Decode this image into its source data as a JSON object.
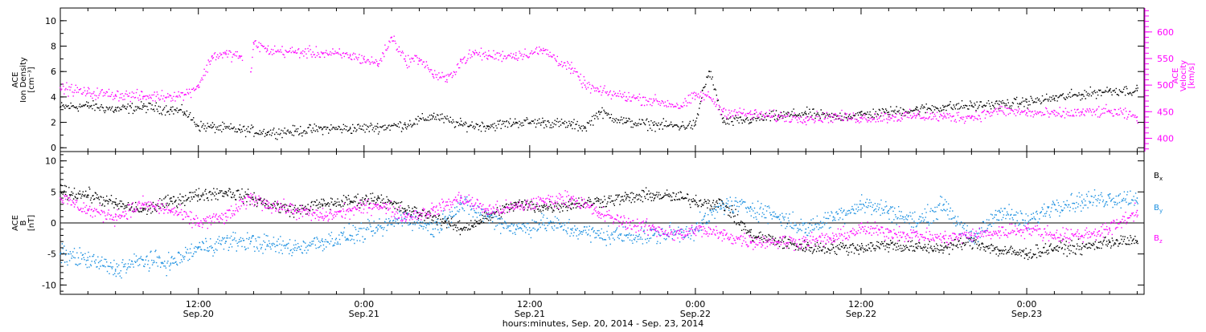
{
  "figure": {
    "x_title": "hours:minutes, Sep. 20, 2014 - Sep. 23, 2014",
    "x_ticks": [
      {
        "hours": 12,
        "time": "12:00",
        "date": "Sep.20"
      },
      {
        "hours": 24,
        "time": "0:00",
        "date": "Sep.21"
      },
      {
        "hours": 36,
        "time": "12:00",
        "date": "Sep.21"
      },
      {
        "hours": 48,
        "time": "0:00",
        "date": "Sep.22"
      },
      {
        "hours": 60,
        "time": "12:00",
        "date": "Sep.22"
      },
      {
        "hours": 72,
        "time": "0:00",
        "date": "Sep.23"
      }
    ],
    "x_range_hours": [
      2,
      80.5
    ],
    "x_hours_note_unit": "hours from 2014-09-20 00:00"
  },
  "colors": {
    "black": "#000000",
    "magenta": "#ff00ff",
    "blue": "#1a8fe0"
  },
  "chart_data": [
    {
      "type": "scatter",
      "panel": "top",
      "left_axis": {
        "label_lines": [
          "ACE",
          "Ion Density",
          "[cm⁻³]"
        ],
        "ylim": [
          -0.3,
          11
        ],
        "ticks": [
          0,
          2,
          4,
          6,
          8,
          10
        ]
      },
      "right_axis": {
        "label_lines": [
          "ACE",
          "Velocity",
          "[km/s]"
        ],
        "ylim": [
          375,
          645
        ],
        "ticks": [
          400,
          450,
          500,
          550,
          600
        ],
        "color": "#ff00ff"
      },
      "series": [
        {
          "name": "Ion Density",
          "axis": "left",
          "color": "#000000",
          "x": [
            2,
            4,
            6,
            8,
            10,
            11,
            12,
            13,
            15,
            17,
            19,
            21,
            23,
            25,
            27,
            29,
            31,
            33,
            35,
            37,
            39,
            40,
            41,
            43,
            45,
            47,
            48,
            48.5,
            49,
            50,
            52,
            54,
            56,
            58,
            60,
            62,
            64,
            66,
            68,
            70,
            72,
            74,
            76,
            78,
            80
          ],
          "y": [
            3.2,
            3.3,
            3.0,
            3.2,
            3.0,
            2.8,
            1.7,
            1.6,
            1.4,
            1.2,
            1.3,
            1.5,
            1.5,
            1.6,
            1.8,
            2.5,
            1.8,
            1.7,
            2.0,
            2.0,
            1.8,
            1.6,
            2.8,
            2.0,
            1.8,
            1.7,
            1.8,
            4.5,
            6.0,
            2.0,
            2.2,
            2.5,
            2.7,
            2.4,
            2.6,
            2.8,
            3.0,
            3.2,
            3.3,
            3.4,
            3.6,
            3.9,
            4.2,
            4.5,
            4.5
          ]
        },
        {
          "name": "Velocity",
          "axis": "right",
          "color": "#ff00ff",
          "x": [
            2,
            4,
            6,
            8,
            10,
            11,
            12,
            13,
            14,
            15,
            15.8,
            16,
            17,
            19,
            21,
            23,
            24,
            25,
            26,
            27,
            28,
            29,
            30,
            31,
            32,
            33,
            35,
            37,
            39,
            40,
            41,
            43,
            45,
            47,
            48,
            49,
            50,
            52,
            54,
            56,
            58,
            60,
            62,
            64,
            66,
            68,
            70,
            72,
            74,
            76,
            78,
            80
          ],
          "y": [
            495,
            485,
            482,
            478,
            480,
            482,
            500,
            555,
            558,
            555,
            525,
            580,
            565,
            562,
            560,
            555,
            548,
            540,
            590,
            545,
            550,
            520,
            510,
            545,
            560,
            555,
            556,
            565,
            530,
            500,
            488,
            478,
            470,
            460,
            480,
            478,
            450,
            445,
            440,
            438,
            440,
            438,
            440,
            442,
            440,
            440,
            452,
            448,
            445,
            448,
            450,
            440
          ]
        }
      ]
    },
    {
      "type": "scatter",
      "panel": "bottom",
      "left_axis": {
        "label_lines": [
          "ACE",
          "B",
          "[nT]"
        ],
        "ylim": [
          -11.5,
          11.5
        ],
        "ticks": [
          -10,
          -5,
          0,
          5,
          10
        ]
      },
      "zero_line": true,
      "legend": {
        "placement": "right",
        "entries": [
          {
            "label": "B",
            "sub": "x",
            "color": "#000000"
          },
          {
            "label": "B",
            "sub": "y",
            "color": "#1a8fe0"
          },
          {
            "label": "B",
            "sub": "z",
            "color": "#ff00ff"
          }
        ]
      },
      "series": [
        {
          "name": "Bx",
          "color": "#000000",
          "x": [
            2,
            4,
            6,
            8,
            10,
            12,
            14,
            15.8,
            17,
            19,
            21,
            23,
            25,
            27,
            29,
            31,
            33,
            35,
            37,
            39,
            41,
            43,
            45,
            47,
            48,
            50,
            52,
            54,
            56,
            58,
            60,
            62,
            64,
            66,
            68,
            70,
            72,
            74,
            76,
            78,
            80
          ],
          "y": [
            5,
            4.5,
            3,
            2,
            3.5,
            4.5,
            5,
            4,
            3,
            2,
            3,
            3.5,
            4,
            2,
            1,
            -1,
            1,
            3,
            2.5,
            3,
            3.5,
            4,
            4.5,
            4,
            3.5,
            3,
            -2,
            -3,
            -4,
            -4,
            -4,
            -3.5,
            -4,
            -4,
            -3,
            -4.5,
            -5,
            -4,
            -4,
            -3,
            -3
          ]
        },
        {
          "name": "By",
          "color": "#1a8fe0",
          "x": [
            2,
            4,
            6,
            8,
            10,
            12,
            14,
            15.8,
            17,
            19,
            21,
            23,
            25,
            27,
            29,
            31,
            33,
            35,
            37,
            39,
            41,
            43,
            45,
            47,
            48,
            50,
            52,
            54,
            56,
            58,
            60,
            62,
            64,
            66,
            68,
            70,
            72,
            74,
            76,
            78,
            80
          ],
          "y": [
            -5,
            -6,
            -7.5,
            -6,
            -6.5,
            -4,
            -3,
            -3,
            -3.5,
            -4,
            -3,
            -2,
            -1,
            1,
            -1,
            3,
            1,
            -1,
            0,
            -1,
            -2,
            -2,
            -2,
            -1.5,
            -1,
            3,
            2.5,
            1,
            -1,
            1,
            3,
            2,
            0,
            3,
            -3,
            2,
            0,
            3,
            3.5,
            4,
            4
          ]
        },
        {
          "name": "Bz",
          "color": "#ff00ff",
          "x": [
            2,
            4,
            6,
            8,
            10,
            12,
            14,
            15.8,
            17,
            19,
            21,
            23,
            25,
            27,
            29,
            31,
            33,
            35,
            37,
            39,
            41,
            43,
            45,
            47,
            48,
            50,
            52,
            54,
            56,
            58,
            60,
            62,
            64,
            66,
            68,
            70,
            72,
            74,
            76,
            78,
            80
          ],
          "y": [
            4,
            2,
            1,
            3,
            2,
            0,
            1,
            4,
            3,
            2,
            1,
            2,
            3,
            1,
            2,
            4,
            2,
            2.5,
            3.5,
            4,
            1.5,
            0,
            -1,
            -2,
            -1,
            -2,
            -3,
            -3,
            -3,
            -2.5,
            -1,
            -1.5,
            -2,
            -2.5,
            -2,
            -1.5,
            -1,
            -2,
            -2,
            -1,
            2
          ]
        }
      ]
    }
  ]
}
